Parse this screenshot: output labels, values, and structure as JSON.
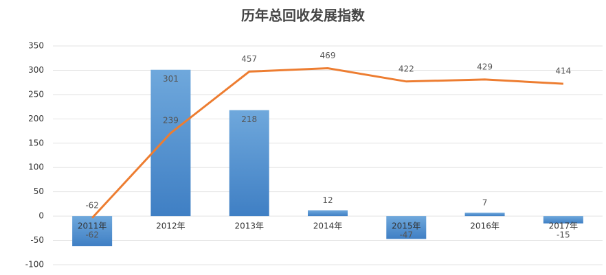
{
  "chart_data": {
    "type": "bar-line",
    "title": "历年总回收发展指数",
    "categories": [
      "2011年",
      "2012年",
      "2013年",
      "2014年",
      "2015年",
      "2016年",
      "2017年"
    ],
    "series": [
      {
        "type": "bar",
        "color": "#4a8ad0",
        "values": [
          -62,
          301,
          218,
          12,
          -47,
          7,
          -15
        ]
      },
      {
        "type": "line",
        "color": "#ed7d31",
        "axis": "y2",
        "values": [
          -62,
          239,
          457,
          469,
          422,
          429,
          414
        ]
      }
    ],
    "ylim": [
      -100,
      350
    ],
    "yticks": [
      -100,
      -50,
      0,
      50,
      100,
      150,
      200,
      250,
      300,
      350
    ],
    "y2lim": [
      -228,
      548
    ],
    "grid": true
  }
}
